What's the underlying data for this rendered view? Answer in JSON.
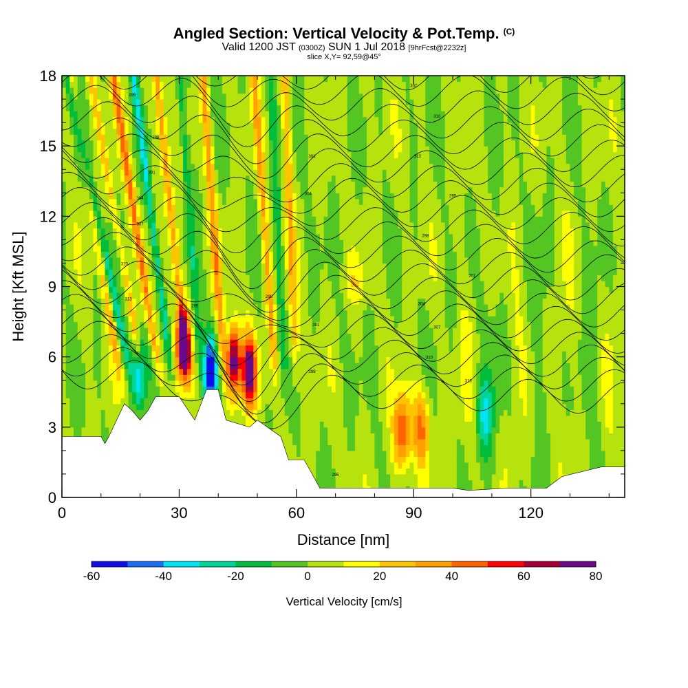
{
  "chart_data": {
    "type": "heatmap",
    "title": "Angled Section: Vertical Velocity & Pot.Temp.",
    "title_units": "(C)",
    "valid_time": {
      "main": "Valid 1200 JST",
      "zulu": "(0300Z)",
      "date": "SUN 1 Jul 2018",
      "forecast": "[9hrFcst@2232z]"
    },
    "slice": "slice X,Y= 92,59@45°",
    "xlabel": "Distance [nm]",
    "ylabel": "Height [Kft MSL]",
    "xlim": [
      0,
      144
    ],
    "ylim": [
      0,
      18
    ],
    "x_ticks": [
      "0",
      "30",
      "60",
      "90",
      "120"
    ],
    "y_ticks": [
      "0",
      "3",
      "6",
      "9",
      "12",
      "15",
      "18"
    ],
    "colorbar": {
      "label": "Vertical Velocity [cm/s]",
      "ticks": [
        "-60",
        "-40",
        "-20",
        "0",
        "20",
        "40",
        "60",
        "80"
      ],
      "range": [
        -60,
        80
      ],
      "step": 10,
      "colors": [
        "#1010e6",
        "#1a6cf0",
        "#00e5f5",
        "#00d59a",
        "#00be3c",
        "#54c623",
        "#b6e30e",
        "#ffff00",
        "#ffc400",
        "#ff9f00",
        "#ff6400",
        "#ff0000",
        "#a80035",
        "#6a0a8a"
      ]
    },
    "features": [
      {
        "x": 16,
        "y": 4.2,
        "w": 1.2,
        "value": 60
      },
      {
        "x": 20,
        "y": 5.3,
        "w": -40
      },
      {
        "x": 31,
        "y": 6.5,
        "w": 80
      },
      {
        "x": 38,
        "y": 5.4,
        "w": -60
      },
      {
        "x": 44,
        "y": 5.8,
        "w": 80
      },
      {
        "x": 48,
        "y": 5.4,
        "w": 80
      },
      {
        "x": 87,
        "y": 2.8,
        "w": 50
      },
      {
        "x": 92,
        "y": 3.0,
        "w": 40
      },
      {
        "x": 108,
        "y": 3.5,
        "w": -30
      }
    ],
    "terrain": [
      [
        0,
        2.6
      ],
      [
        10,
        2.6
      ],
      [
        11,
        2.3
      ],
      [
        12,
        2.6
      ],
      [
        14,
        3.3
      ],
      [
        16,
        4.0
      ],
      [
        18,
        3.7
      ],
      [
        20,
        3.3
      ],
      [
        22,
        3.7
      ],
      [
        24,
        4.3
      ],
      [
        30,
        4.3
      ],
      [
        34,
        3.3
      ],
      [
        37,
        4.6
      ],
      [
        40,
        4.6
      ],
      [
        42,
        3.3
      ],
      [
        48,
        3.0
      ],
      [
        50,
        3.3
      ],
      [
        56,
        2.6
      ],
      [
        58,
        1.6
      ],
      [
        62,
        1.6
      ],
      [
        64,
        1.0
      ],
      [
        66,
        0.4
      ],
      [
        100,
        0.4
      ],
      [
        104,
        0.3
      ],
      [
        114,
        0.4
      ],
      [
        124,
        0.4
      ],
      [
        128,
        0.9
      ],
      [
        138,
        1.3
      ],
      [
        144,
        1.3
      ]
    ],
    "contour_labels": [
      "295",
      "298",
      "301",
      "304",
      "307",
      "310",
      "313"
    ]
  }
}
